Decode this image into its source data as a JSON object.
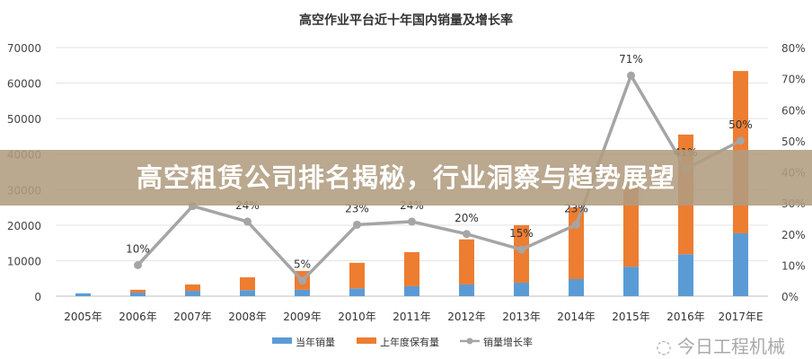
{
  "chart_data": {
    "type": "bar",
    "title": "高空作业平台近十年国内销量及增长率",
    "categories": [
      "2005年",
      "2006年",
      "2007年",
      "2008年",
      "2009年",
      "2010年",
      "2011年",
      "2012年",
      "2013年",
      "2014年",
      "2015年",
      "2016年",
      "2017年E"
    ],
    "series": [
      {
        "name": "当年销量",
        "type": "bar",
        "stack": "total",
        "axis": "left",
        "color": "#5b9bd5",
        "values": [
          800,
          1000,
          1500,
          1700,
          1800,
          2200,
          2800,
          3300,
          3800,
          4800,
          8300,
          11800,
          17700
        ]
      },
      {
        "name": "上年度保有量",
        "type": "bar",
        "stack": "total",
        "axis": "left",
        "color": "#ed7d31",
        "values": [
          0,
          800,
          1800,
          3600,
          5300,
          7200,
          9600,
          12700,
          16200,
          20200,
          22700,
          33700,
          45700
        ]
      },
      {
        "name": "销量增长率",
        "type": "line",
        "axis": "right",
        "color": "#a5a5a5",
        "unit": "%",
        "values": [
          null,
          10,
          29,
          24,
          5,
          23,
          24,
          20,
          15,
          23,
          71,
          41,
          50
        ],
        "labels": [
          "",
          "10%",
          "",
          "24%",
          "5%",
          "23%",
          "24%",
          "20%",
          "15%",
          "23%",
          "71%",
          "41%",
          "50%"
        ]
      }
    ],
    "left_axis": {
      "ylim": [
        0,
        70000
      ],
      "ticks": [
        "0",
        "10000",
        "20000",
        "30000",
        "40000",
        "50000",
        "60000",
        "70000"
      ]
    },
    "right_axis": {
      "ylim": [
        0,
        80
      ],
      "ticks": [
        "0%",
        "10%",
        "20%",
        "30%",
        "40%",
        "50%",
        "60%",
        "70%",
        "80%"
      ]
    },
    "grid": true,
    "legend_position": "bottom"
  },
  "banner": {
    "text": "高空租赁公司排名揭秘，行业洞察与趋势展望",
    "color": "#b09c80"
  },
  "watermark": {
    "text": "今日工程机械",
    "icon": "wechat-icon"
  }
}
